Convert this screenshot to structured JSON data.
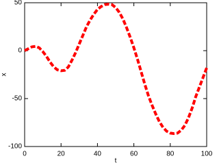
{
  "chart_data": {
    "type": "line",
    "xlabel": "t",
    "ylabel": "x",
    "x": [
      0,
      2,
      4,
      6,
      8,
      10,
      12,
      14,
      16,
      18,
      20,
      22,
      24,
      26,
      28,
      30,
      32,
      34,
      36,
      38,
      40,
      42,
      44,
      46,
      48,
      50,
      52,
      54,
      56,
      58,
      60,
      62,
      64,
      66,
      68,
      70,
      72,
      74,
      76,
      78,
      80,
      82,
      84,
      86,
      88,
      90,
      92,
      94,
      96,
      98,
      100
    ],
    "values": [
      0,
      2,
      4,
      4.5,
      3,
      -1,
      -6,
      -12,
      -17,
      -20,
      -21,
      -20.5,
      -17,
      -10,
      -2,
      7,
      16,
      25,
      32,
      38,
      43,
      46,
      48,
      48.5,
      48,
      45,
      40,
      33,
      24,
      14,
      3,
      -9,
      -22,
      -35,
      -47,
      -57,
      -66,
      -74,
      -80,
      -84,
      -86,
      -86.5,
      -86,
      -83,
      -78,
      -70,
      -60,
      -48,
      -38,
      -28,
      -18
    ],
    "color": "#ff0000",
    "dashed": true,
    "xlim": [
      0,
      100
    ],
    "xticks": [
      0,
      20,
      40,
      60,
      80,
      100
    ],
    "ylim": [
      -100,
      50
    ],
    "yticks": [
      -100,
      -50,
      0,
      50
    ],
    "grid": false
  }
}
